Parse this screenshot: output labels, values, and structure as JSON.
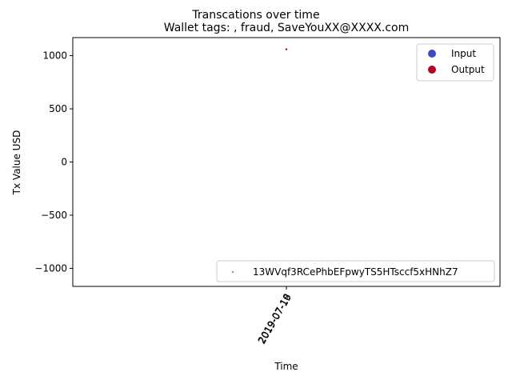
{
  "chart_data": {
    "type": "scatter",
    "suptitle": "Transcations over time",
    "title": "Wallet tags: , fraud, SaveYouXX@XXXX.com",
    "xlabel": "Time",
    "ylabel": "Tx Value USD",
    "ylim": [
      -1170,
      1170
    ],
    "yticks": [
      1000,
      500,
      0,
      -500,
      -1000
    ],
    "ytick_labels": [
      "1000",
      "500",
      "0",
      "−500",
      "−1000"
    ],
    "xtick_labels": [
      "2019-07-18",
      "2019-07-19"
    ],
    "grid": false,
    "points": [
      {
        "x": "2019-07-18",
        "y": 1060,
        "type": "Output"
      }
    ],
    "legend_types": {
      "location": "upper right",
      "entries": [
        {
          "label": "Input",
          "color": "#3b4cc0"
        },
        {
          "label": "Output",
          "color": "#b40426"
        }
      ]
    },
    "legend_series": {
      "location": "lower right",
      "entries": [
        {
          "label": "13WVqf3RCePhbEFpwyTS5HTsccf5xHNhZ7",
          "color": "#1f77b4"
        }
      ]
    }
  }
}
